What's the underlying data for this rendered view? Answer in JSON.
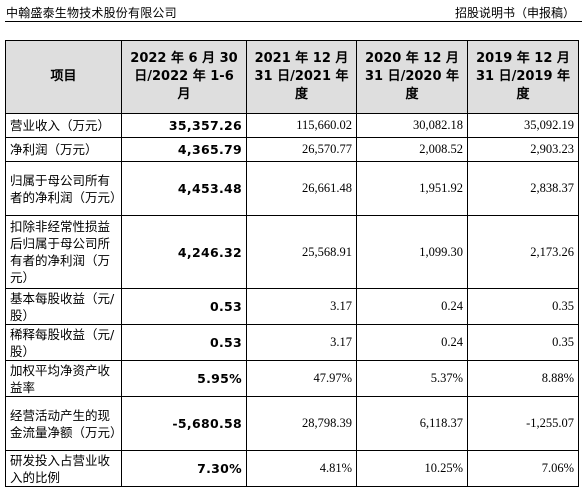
{
  "header": {
    "company": "中翰盛泰生物技术股份有限公司",
    "doc_type": "招股说明书（申报稿）"
  },
  "table": {
    "columns": [
      "项目",
      "2022 年 6 月 30 日/2022 年 1-6 月",
      "2021 年 12 月 31 日/2021 年度",
      "2020 年 12 月 31 日/2020 年度",
      "2019 年 12 月 31 日/2019 年度"
    ],
    "rows": [
      {
        "label": "营业收入（万元）",
        "values": [
          "35,357.26",
          "115,660.02",
          "30,082.18",
          "35,092.19"
        ]
      },
      {
        "label": "净利润（万元）",
        "values": [
          "4,365.79",
          "26,570.77",
          "2,008.52",
          "2,903.23"
        ]
      },
      {
        "label": "归属于母公司所有者的净利润（万元）",
        "values": [
          "4,453.48",
          "26,661.48",
          "1,951.92",
          "2,838.37"
        ]
      },
      {
        "label": "扣除非经常性损益后归属于母公司所有者的净利润（万元）",
        "values": [
          "4,246.32",
          "25,568.91",
          "1,099.30",
          "2,173.26"
        ]
      },
      {
        "label": "基本每股收益（元/股）",
        "values": [
          "0.53",
          "3.17",
          "0.24",
          "0.35"
        ]
      },
      {
        "label": "稀释每股收益（元/股）",
        "values": [
          "0.53",
          "3.17",
          "0.24",
          "0.35"
        ]
      },
      {
        "label": "加权平均净资产收益率",
        "values": [
          "5.95%",
          "47.97%",
          "5.37%",
          "8.88%"
        ]
      },
      {
        "label": "经营活动产生的现金流量净额（万元）",
        "values": [
          "-5,680.58",
          "28,798.39",
          "6,118.37",
          "-1,255.07"
        ]
      },
      {
        "label": "研发投入占营业收入的比例",
        "values": [
          "7.30%",
          "4.81%",
          "10.25%",
          "7.06%"
        ]
      }
    ]
  }
}
